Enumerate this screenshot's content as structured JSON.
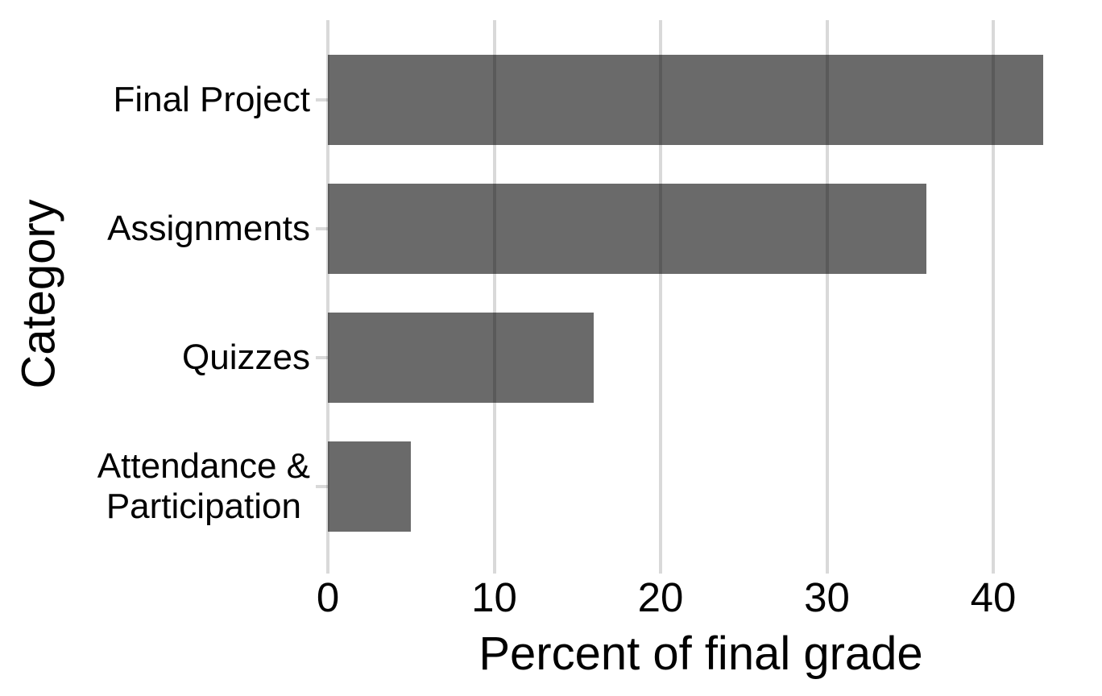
{
  "chart_data": {
    "type": "bar",
    "orientation": "horizontal",
    "title": "",
    "xlabel": "Percent of final grade",
    "ylabel": "Category",
    "categories": [
      "Final Project",
      "Assignments",
      "Quizzes",
      "Attendance &\nParticipation"
    ],
    "values": [
      43,
      36,
      16,
      5
    ],
    "x_ticks": [
      "0",
      "10",
      "20",
      "30",
      "40"
    ],
    "x_tick_values": [
      0,
      10,
      20,
      30,
      40
    ],
    "xlim": [
      0,
      45
    ],
    "grid": "vertical-major-only, drawn over bars",
    "legend": "none",
    "colors": {
      "bar_fill": "#6a6a6a",
      "gridline": "rgba(0,0,0,0.15)",
      "axis_tick": "rgba(0,0,0,0.15)",
      "text": "#000000",
      "background": "#ffffff"
    }
  }
}
